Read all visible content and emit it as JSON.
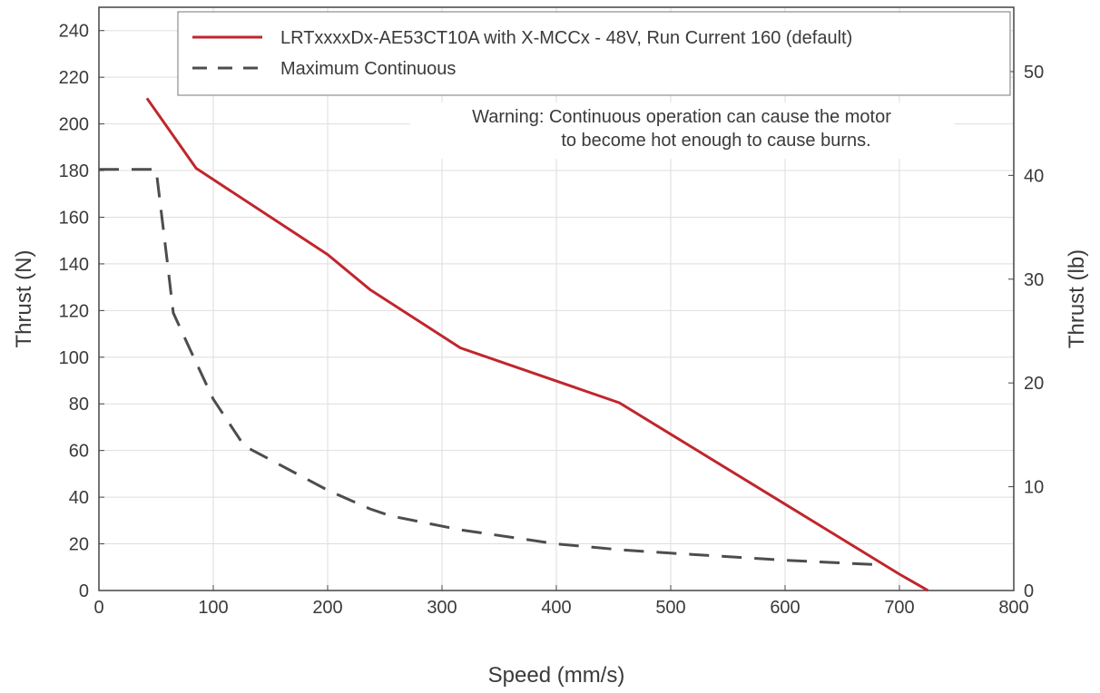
{
  "chart_data": {
    "type": "line",
    "xlabel": "Speed (mm/s)",
    "ylabel": "Thrust (N)",
    "y2label": "Thrust (lb)",
    "xlim": [
      0,
      800
    ],
    "ylim": [
      0,
      250
    ],
    "y2lim": [
      0,
      56.2
    ],
    "xticks": [
      0,
      100,
      200,
      300,
      400,
      500,
      600,
      700,
      800
    ],
    "yticks": [
      0,
      20,
      40,
      60,
      80,
      100,
      120,
      140,
      160,
      180,
      200,
      220,
      240
    ],
    "y2ticks": [
      0,
      10,
      20,
      30,
      40,
      50
    ],
    "grid": true,
    "legend_position": "top-right",
    "series": [
      {
        "name": "LRTxxxxDx-AE53CT10A with X-MCCx - 48V, Run Current 160 (default)",
        "style": "solid",
        "color": "#c0262d",
        "x": [
          42,
          85,
          200,
          237,
          316,
          455,
          500,
          600,
          700,
          725
        ],
        "y": [
          211,
          181,
          144,
          129,
          104,
          80.5,
          67,
          37,
          7,
          0
        ]
      },
      {
        "name": "Maximum Continuous",
        "style": "dashed",
        "color": "#4d4d4d",
        "x": [
          0,
          50,
          60,
          65,
          80,
          100,
          127,
          200,
          237,
          255,
          316,
          400,
          455,
          500,
          600,
          683
        ],
        "y": [
          180.5,
          180.5,
          140,
          119,
          103,
          82,
          62,
          43,
          35,
          32,
          26,
          20,
          17.5,
          16,
          13,
          11
        ]
      }
    ],
    "annotation": "Warning: Continuous operation can cause the motor\nto become hot enough to cause burns."
  }
}
